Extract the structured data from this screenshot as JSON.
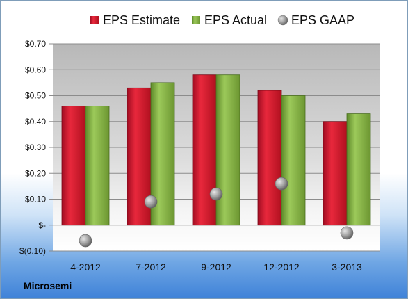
{
  "company": "Microsemi",
  "chart_data": {
    "type": "bar",
    "categories": [
      "4-2012",
      "7-2012",
      "9-2012",
      "12-2012",
      "3-2013"
    ],
    "series": [
      {
        "name": "EPS Estimate",
        "kind": "bar",
        "color": "#c8102e",
        "values": [
          0.46,
          0.53,
          0.58,
          0.52,
          0.4
        ]
      },
      {
        "name": "EPS Actual",
        "kind": "bar",
        "color": "#77a33a",
        "values": [
          0.46,
          0.55,
          0.58,
          0.5,
          0.43
        ]
      },
      {
        "name": "EPS GAAP",
        "kind": "marker",
        "color": "#8a8a8a",
        "values": [
          -0.06,
          0.09,
          0.12,
          0.16,
          -0.03
        ]
      }
    ],
    "y_ticks": [
      {
        "value": 0.7,
        "label": "$0.70"
      },
      {
        "value": 0.6,
        "label": "$0.60"
      },
      {
        "value": 0.5,
        "label": "$0.50"
      },
      {
        "value": 0.4,
        "label": "$0.40"
      },
      {
        "value": 0.3,
        "label": "$0.30"
      },
      {
        "value": 0.2,
        "label": "$0.20"
      },
      {
        "value": 0.1,
        "label": "$0.10"
      },
      {
        "value": 0.0,
        "label": "$-"
      },
      {
        "value": -0.1,
        "label": "$(0.10)"
      }
    ],
    "ylim": [
      -0.1,
      0.7
    ],
    "grid": true,
    "legend_position": "top"
  }
}
